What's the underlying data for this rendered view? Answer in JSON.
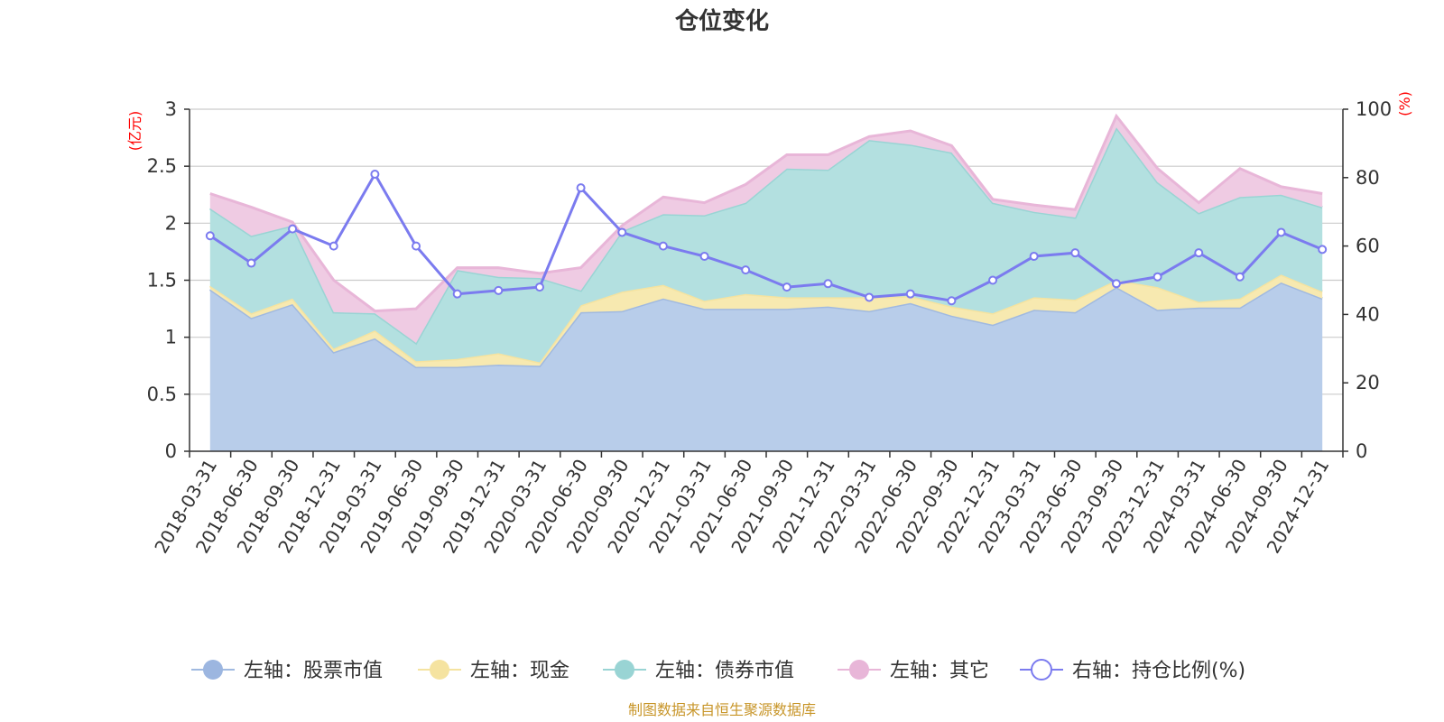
{
  "chart_data": {
    "type": "area",
    "title": "仓位变化",
    "source_note": "制图数据来自恒生聚源数据库",
    "left_axis": {
      "unit": "(亿元)",
      "min": 0,
      "max": 3,
      "ticks": [
        "0",
        "0.5",
        "1",
        "1.5",
        "2",
        "2.5",
        "3"
      ]
    },
    "right_axis": {
      "unit": "(%)",
      "min": 0,
      "max": 100,
      "ticks": [
        "0",
        "20",
        "40",
        "60",
        "80",
        "100"
      ]
    },
    "categories": [
      "2018-03-31",
      "2018-06-30",
      "2018-09-30",
      "2018-12-31",
      "2019-03-31",
      "2019-06-30",
      "2019-09-30",
      "2019-12-31",
      "2020-03-31",
      "2020-06-30",
      "2020-09-30",
      "2020-12-31",
      "2021-03-31",
      "2021-06-30",
      "2021-09-30",
      "2021-12-31",
      "2022-03-31",
      "2022-06-30",
      "2022-09-30",
      "2022-12-31",
      "2023-03-31",
      "2023-06-30",
      "2023-09-30",
      "2023-12-31",
      "2024-03-31",
      "2024-06-30",
      "2024-09-30",
      "2024-12-31"
    ],
    "series": [
      {
        "name": "左轴：股票市值",
        "axis": "left",
        "stacked": true,
        "color": "#a0b9e0",
        "fill": "#b8cdea",
        "values": [
          1.42,
          1.17,
          1.29,
          0.87,
          0.99,
          0.74,
          0.74,
          0.76,
          0.75,
          1.22,
          1.23,
          1.34,
          1.25,
          1.25,
          1.25,
          1.27,
          1.23,
          1.3,
          1.19,
          1.11,
          1.24,
          1.22,
          1.44,
          1.24,
          1.26,
          1.26,
          1.48,
          1.34
        ]
      },
      {
        "name": "左轴：现金",
        "axis": "left",
        "stacked": true,
        "color": "#f5e3a0",
        "fill": "#f7e9b0",
        "values": [
          0.03,
          0.04,
          0.05,
          0.03,
          0.07,
          0.05,
          0.07,
          0.1,
          0.03,
          0.06,
          0.17,
          0.12,
          0.07,
          0.13,
          0.1,
          0.08,
          0.12,
          0.06,
          0.08,
          0.1,
          0.11,
          0.11,
          0.06,
          0.2,
          0.05,
          0.08,
          0.07,
          0.06
        ]
      },
      {
        "name": "左轴：债券市值",
        "axis": "left",
        "stacked": true,
        "color": "#99d4d4",
        "fill": "#b3e0e0",
        "values": [
          0.68,
          0.68,
          0.64,
          0.32,
          0.15,
          0.16,
          0.78,
          0.67,
          0.74,
          0.13,
          0.53,
          0.62,
          0.75,
          0.8,
          1.13,
          1.12,
          1.38,
          1.33,
          1.35,
          0.97,
          0.75,
          0.72,
          1.34,
          0.92,
          0.78,
          0.89,
          0.7,
          0.74
        ]
      },
      {
        "name": "左轴：其它",
        "axis": "left",
        "stacked": true,
        "color": "#e8b6d8",
        "fill": "#efcbe3",
        "values": [
          0.13,
          0.25,
          0.03,
          0.28,
          0.02,
          0.3,
          0.02,
          0.08,
          0.04,
          0.2,
          0.05,
          0.15,
          0.11,
          0.16,
          0.12,
          0.13,
          0.03,
          0.12,
          0.06,
          0.03,
          0.06,
          0.07,
          0.1,
          0.12,
          0.09,
          0.25,
          0.07,
          0.12
        ]
      },
      {
        "name": "右轴：持仓比例(%)",
        "axis": "right",
        "type": "line",
        "color": "#7b7bef",
        "values": [
          63,
          55,
          65,
          60,
          81,
          60,
          46,
          47,
          48,
          77,
          64,
          60,
          57,
          53,
          48,
          49,
          45,
          46,
          44,
          50,
          57,
          58,
          49,
          51,
          58,
          51,
          64,
          59
        ]
      }
    ]
  }
}
